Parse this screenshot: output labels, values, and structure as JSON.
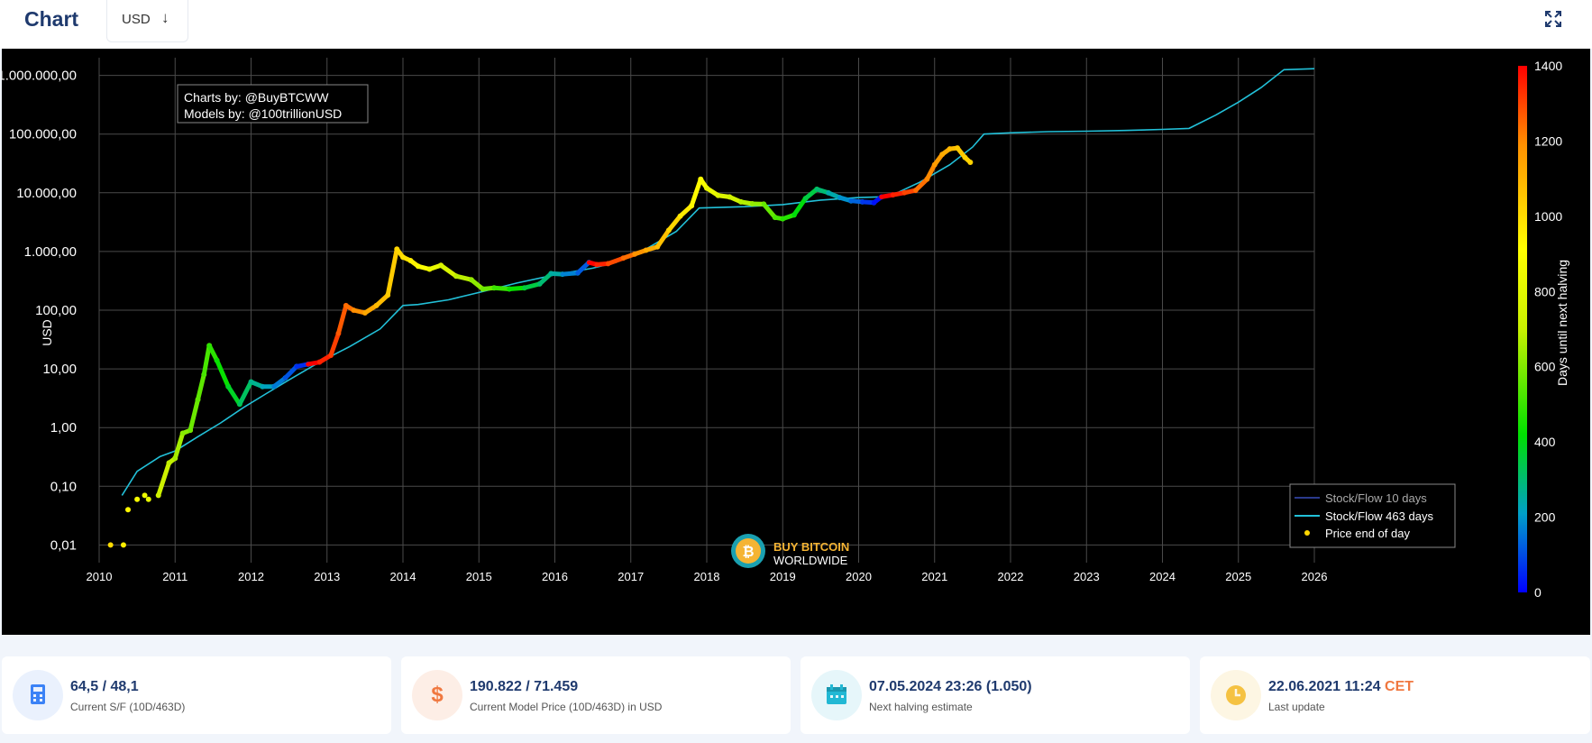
{
  "header": {
    "title": "Chart",
    "currency_label": "USD",
    "currency_arrow": "↓",
    "fullscreen_icon": "fullscreen-icon"
  },
  "chart_data": {
    "type": "scatter",
    "ylabel": "USD",
    "yscale": "log",
    "ylim": [
      0.005,
      2000000
    ],
    "xlim": [
      2010,
      2026
    ],
    "x_ticks": [
      "2010",
      "2011",
      "2012",
      "2013",
      "2014",
      "2015",
      "2016",
      "2017",
      "2018",
      "2019",
      "2020",
      "2021",
      "2022",
      "2023",
      "2024",
      "2025",
      "2026"
    ],
    "y_ticks": [
      {
        "value": 0.01,
        "label": "0,01"
      },
      {
        "value": 0.1,
        "label": "0,10"
      },
      {
        "value": 1,
        "label": "1,00"
      },
      {
        "value": 10,
        "label": "10,00"
      },
      {
        "value": 100,
        "label": "100,00"
      },
      {
        "value": 1000,
        "label": "1.000,00"
      },
      {
        "value": 10000,
        "label": "10.000,00"
      },
      {
        "value": 100000,
        "label": "100.000,00"
      },
      {
        "value": 1000000,
        "label": "1.000.000,00"
      }
    ],
    "credits": [
      "Charts by: @BuyBTCWW",
      "Models by: @100trillionUSD"
    ],
    "watermark": [
      "BUY BITCOIN",
      "WORLDWIDE"
    ],
    "colorbar": {
      "label": "Days until next halving",
      "min": 0,
      "max": 1400,
      "ticks": [
        0,
        200,
        400,
        600,
        800,
        1000,
        1200,
        1400
      ],
      "colors": [
        "#0000ff",
        "#00a0c8",
        "#00e000",
        "#c8f000",
        "#ffff00",
        "#ff9000",
        "#ff0000"
      ]
    },
    "legend": {
      "placement": "bottom-right",
      "items": [
        {
          "name": "Stock/Flow 10 days",
          "color": "#2a3a8c",
          "kind": "line"
        },
        {
          "name": "Stock/Flow 463 days",
          "color": "#22c0d8",
          "kind": "line"
        },
        {
          "name": "Price end of day",
          "color": "#ffd700",
          "kind": "dot"
        }
      ]
    },
    "halvings": [
      2012.91,
      2016.52,
      2020.36,
      2024.35,
      2028.3
    ],
    "series": [
      {
        "name": "Stock/Flow 463 days",
        "color": "#22c0d8",
        "x": [
          2010.3,
          2010.5,
          2010.8,
          2011.0,
          2011.3,
          2011.6,
          2011.9,
          2012.2,
          2012.5,
          2012.9,
          2013.3,
          2013.7,
          2014.0,
          2014.2,
          2014.6,
          2015.0,
          2015.5,
          2016.0,
          2016.5,
          2016.8,
          2017.2,
          2017.6,
          2017.9,
          2018.5,
          2019.0,
          2019.5,
          2020.0,
          2020.4,
          2020.8,
          2021.2,
          2021.5,
          2021.65,
          2022.0,
          2022.5,
          2023.0,
          2023.5,
          2024.0,
          2024.35,
          2024.7,
          2025.0,
          2025.3,
          2025.6,
          2026.0
        ],
        "y": [
          0.07,
          0.18,
          0.32,
          0.4,
          0.7,
          1.2,
          2.2,
          3.8,
          6.5,
          13,
          24,
          48,
          120,
          125,
          150,
          200,
          290,
          400,
          520,
          650,
          1100,
          2200,
          5500,
          5800,
          6300,
          7500,
          8300,
          8600,
          15000,
          30000,
          60000,
          100000,
          105000,
          110000,
          112000,
          115000,
          120000,
          125000,
          210000,
          350000,
          620000,
          1250000,
          1300000
        ]
      },
      {
        "name": "Price end of day",
        "color": "#ffd700",
        "x": [
          2010.15,
          2010.32,
          2010.38,
          2010.5,
          2010.6,
          2010.65,
          2010.78,
          2010.92,
          2011.0,
          2011.1,
          2011.2,
          2011.3,
          2011.38,
          2011.45,
          2011.55,
          2011.7,
          2011.85,
          2012.0,
          2012.15,
          2012.3,
          2012.45,
          2012.6,
          2012.75,
          2012.9,
          2013.05,
          2013.15,
          2013.25,
          2013.35,
          2013.5,
          2013.65,
          2013.8,
          2013.92,
          2014.0,
          2014.1,
          2014.2,
          2014.35,
          2014.5,
          2014.7,
          2014.9,
          2015.05,
          2015.2,
          2015.4,
          2015.6,
          2015.8,
          2015.95,
          2016.1,
          2016.3,
          2016.45,
          2016.55,
          2016.7,
          2016.9,
          2017.05,
          2017.2,
          2017.35,
          2017.5,
          2017.65,
          2017.8,
          2017.92,
          2018.0,
          2018.15,
          2018.3,
          2018.45,
          2018.6,
          2018.75,
          2018.9,
          2019.0,
          2019.15,
          2019.3,
          2019.45,
          2019.6,
          2019.75,
          2019.9,
          2020.05,
          2020.2,
          2020.3,
          2020.45,
          2020.6,
          2020.75,
          2020.9,
          2021.0,
          2021.1,
          2021.2,
          2021.3,
          2021.4,
          2021.47
        ],
        "y": [
          0.01,
          0.01,
          0.04,
          0.06,
          0.07,
          0.06,
          0.07,
          0.25,
          0.3,
          0.8,
          0.9,
          3,
          8,
          25,
          14,
          5,
          2.5,
          6,
          5,
          5,
          7,
          11,
          12,
          13,
          17,
          40,
          120,
          100,
          90,
          120,
          180,
          1100,
          800,
          700,
          560,
          500,
          580,
          380,
          330,
          230,
          240,
          230,
          240,
          280,
          420,
          410,
          430,
          650,
          600,
          620,
          770,
          900,
          1050,
          1200,
          2300,
          4000,
          6000,
          17000,
          12000,
          9000,
          8500,
          7000,
          6500,
          6400,
          3800,
          3600,
          4200,
          8000,
          11500,
          10000,
          8300,
          7300,
          7000,
          6800,
          8500,
          9200,
          10000,
          11000,
          17000,
          30000,
          45000,
          56000,
          58000,
          40000,
          33000
        ],
        "days_until_halving": [
          1000,
          950,
          930,
          880,
          840,
          820,
          780,
          720,
          690,
          650,
          610,
          570,
          550,
          520,
          480,
          430,
          380,
          320,
          270,
          220,
          160,
          110,
          60,
          1400,
          1350,
          1310,
          1270,
          1240,
          1190,
          1130,
          1080,
          1040,
          1010,
          980,
          940,
          890,
          830,
          760,
          680,
          620,
          570,
          500,
          430,
          350,
          300,
          250,
          170,
          120,
          1400,
          1350,
          1290,
          1240,
          1180,
          1120,
          1070,
          1010,
          960,
          920,
          890,
          830,
          780,
          730,
          670,
          620,
          560,
          520,
          470,
          410,
          350,
          300,
          240,
          190,
          130,
          70,
          20,
          1400,
          1350,
          1300,
          1240,
          1200,
          1160,
          1120,
          1080,
          1040,
          1020
        ]
      }
    ]
  },
  "cards": [
    {
      "value": "64,5 / 48,1",
      "label": "Current S/F (10D/463D)",
      "icon": "calculator-icon",
      "bg": "#eaf1fd",
      "fg": "#3b82f6"
    },
    {
      "value": "190.822 / 71.459",
      "label": "Current Model Price (10D/463D) in USD",
      "icon": "dollar-icon",
      "icon_glyph": "$",
      "bg": "#fdeee6",
      "fg": "#f07840"
    },
    {
      "value": "07.05.2024 23:26 (1.050)",
      "label": "Next halving estimate",
      "icon": "calendar-icon",
      "bg": "#e6f6fa",
      "fg": "#22b8d4"
    },
    {
      "value": "22.06.2021 11:24",
      "value_suffix": "CET",
      "label": "Last update",
      "icon": "clock-icon",
      "bg": "#fdf6e3",
      "fg": "#f5c242"
    }
  ]
}
